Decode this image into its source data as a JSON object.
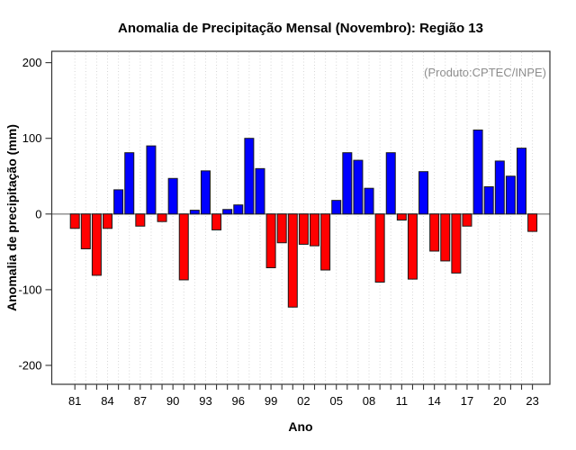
{
  "chart_data": {
    "type": "bar",
    "title": "Anomalia de Precipitação Mensal (Novembro): Região 13",
    "annotation": "(Produto:CPTEC/INPE)",
    "xlabel": "Ano",
    "ylabel": "Anomalia de precipitação (mm)",
    "categories": [
      1981,
      1982,
      1983,
      1984,
      1985,
      1986,
      1987,
      1988,
      1989,
      1990,
      1991,
      1992,
      1993,
      1994,
      1995,
      1996,
      1997,
      1998,
      1999,
      2000,
      2001,
      2002,
      2003,
      2004,
      2005,
      2006,
      2007,
      2008,
      2009,
      2010,
      2011,
      2012,
      2013,
      2014,
      2015,
      2016,
      2017,
      2018,
      2019,
      2020,
      2021,
      2022,
      2023
    ],
    "values": [
      -19,
      -46,
      -81,
      -19,
      32,
      81,
      -16,
      90,
      -10,
      47,
      -87,
      5,
      57,
      -21,
      6,
      12,
      100,
      60,
      -71,
      -38,
      -123,
      -40,
      -42,
      -74,
      18,
      81,
      71,
      34,
      -90,
      81,
      -8,
      -86,
      56,
      -49,
      -62,
      -78,
      -16,
      111,
      36,
      70,
      50,
      87,
      -23
    ],
    "ylim": [
      -225,
      215
    ],
    "yticks": [
      -200,
      -100,
      0,
      100,
      200
    ],
    "xtick_labels": [
      "81",
      "84",
      "87",
      "90",
      "93",
      "96",
      "99",
      "02",
      "05",
      "08",
      "11",
      "14",
      "17",
      "20",
      "23"
    ],
    "xtick_label_every": 3,
    "grid": "vertical-dotted-per-year",
    "legend": "none",
    "colors": {
      "positive_bar": "#0000FF",
      "negative_bar": "#FF0000",
      "bar_border": "#1a1a1a",
      "zero_line": "#888888",
      "frame": "#333333",
      "gridline": "#d6d6d6",
      "annotation_text": "#8c8c8c"
    }
  }
}
